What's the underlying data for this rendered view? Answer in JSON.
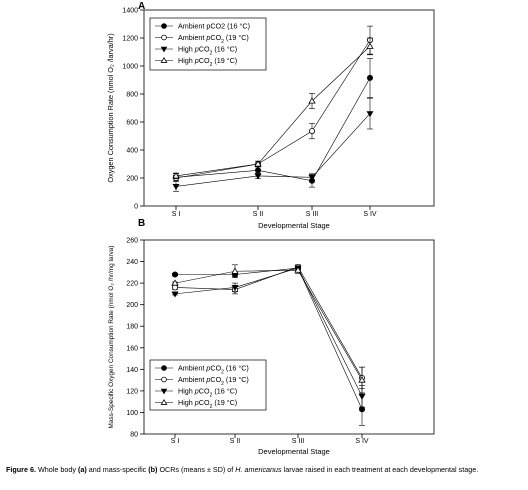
{
  "chart_data": [
    {
      "panel_label": "A",
      "type": "line",
      "xlabel": "Developmental Stage",
      "ylabel": "Oxygen Consumption Rate (nmol O₂ /larva/hr)",
      "categories": [
        "S I",
        "S II",
        "S III",
        "S IV"
      ],
      "ylim": [
        0,
        1400
      ],
      "yticks": [
        0,
        200,
        400,
        600,
        800,
        1000,
        1200,
        1400
      ],
      "legend_position": "top-left",
      "series": [
        {
          "name": "Ambient pCO2 (16 °C)",
          "marker": "filled-circle",
          "values": [
            205,
            255,
            180,
            915
          ],
          "errors": [
            25,
            25,
            45,
            140
          ]
        },
        {
          "name": "Ambient pCO2 (19 °C)",
          "marker": "open-circle",
          "values": [
            200,
            300,
            535,
            1185
          ],
          "errors": [
            20,
            20,
            55,
            100
          ]
        },
        {
          "name": "High pCO2 (16 °C)",
          "marker": "filled-triangle-down",
          "values": [
            140,
            215,
            205,
            660
          ],
          "errors": [
            35,
            20,
            25,
            110
          ]
        },
        {
          "name": "High pCO2 (19 °C)",
          "marker": "open-triangle-up",
          "values": [
            215,
            300,
            750,
            1140
          ],
          "errors": [
            20,
            20,
            55,
            60
          ]
        }
      ]
    },
    {
      "panel_label": "B",
      "type": "line",
      "xlabel": "Developmental Stage",
      "ylabel": "Mass-Specific Oxygen Consumption Rate (nmol O₂ /hr/mg larva)",
      "categories": [
        "S I",
        "S II",
        "S III",
        "S IV"
      ],
      "ylim": [
        80,
        260
      ],
      "yticks": [
        80,
        100,
        120,
        140,
        160,
        180,
        200,
        220,
        240,
        260
      ],
      "legend_position": "bottom-left",
      "series": [
        {
          "name": "Ambient pCO2 (16 °C)",
          "marker": "filled-circle",
          "values": [
            228,
            228,
            234,
            103
          ],
          "errors": [
            1,
            2,
            2,
            15
          ]
        },
        {
          "name": "Ambient pCO2 (19 °C)",
          "marker": "open-circle",
          "values": [
            216,
            214,
            235,
            132
          ],
          "errors": [
            2,
            4,
            2,
            10
          ]
        },
        {
          "name": "High pCO2 (16 °C)",
          "marker": "filled-triangle-down",
          "values": [
            210,
            216,
            234,
            115
          ],
          "errors": [
            1,
            4,
            2,
            10
          ]
        },
        {
          "name": "High pCO2 (19 °C)",
          "marker": "open-triangle-up",
          "values": [
            220,
            231,
            232,
            130
          ],
          "errors": [
            1,
            6,
            3,
            12
          ]
        }
      ]
    }
  ],
  "legend_text": [
    {
      "main": "Ambient pCO2 (16 °C)"
    },
    {
      "pre": "Ambient ",
      "italic": "p",
      "mid": "CO",
      "sub": "2",
      "post": " (19 °C)"
    },
    {
      "pre": "High ",
      "italic": "p",
      "mid": "CO",
      "sub": "2",
      "post": " (16 °C)"
    },
    {
      "pre": "High ",
      "italic": "p",
      "mid": "CO",
      "sub": "2",
      "post": " (19 °C)"
    }
  ],
  "legend_text_b": [
    {
      "pre": "Ambient ",
      "italic": "p",
      "mid": "CO",
      "sub": "2",
      "post": " (16 °C)"
    },
    {
      "pre": "Ambient ",
      "italic": "p",
      "mid": "CO",
      "sub": "2",
      "post": " (19 °C)"
    },
    {
      "pre": "High ",
      "italic": "p",
      "mid": "CO",
      "sub": "2",
      "post": " (16 °C)"
    },
    {
      "pre": "High ",
      "italic": "p",
      "mid": "CO",
      "sub": "2",
      "post": " (19 °C)"
    }
  ],
  "caption": {
    "label": "Figure 6.",
    "part1": "Whole body",
    "a": "(a)",
    "part2": "and mass-specific",
    "b": "(b)",
    "part3": "OCRs (means ± SD) of",
    "species": "H. americanus",
    "part4": "larvae raised in each treatment at each developmental stage."
  }
}
